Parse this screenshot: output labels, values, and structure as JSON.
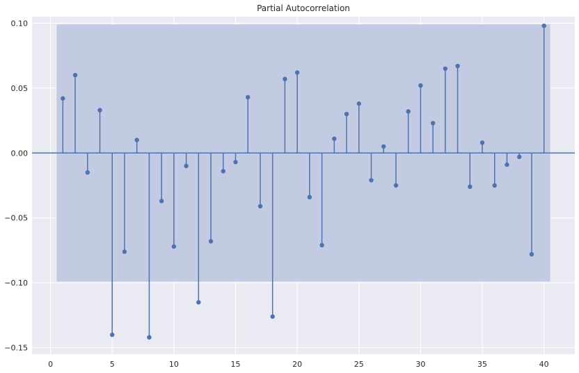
{
  "chart_data": {
    "type": "stem",
    "title": "Partial Autocorrelation",
    "xlabel": "",
    "ylabel": "",
    "xlim": [
      -1.5,
      42.5
    ],
    "ylim": [
      -0.155,
      0.105
    ],
    "xticks": [
      0,
      5,
      10,
      15,
      20,
      25,
      30,
      35,
      40
    ],
    "yticks": [
      0.1,
      0.05,
      0.0,
      -0.05,
      -0.1,
      -0.15
    ],
    "ytick_labels": [
      "0.10",
      "0.05",
      "0.00",
      "−0.05",
      "−0.10",
      "−0.15"
    ],
    "confidence_band": {
      "lower": -0.099,
      "upper": 0.099,
      "x_start": 0.5,
      "x_end": 40.5
    },
    "grid": true,
    "colors": {
      "stem": "#4c72b0",
      "band": "#c3cbe3",
      "background": "#eaeaf2",
      "grid": "#ffffff"
    },
    "lags": [
      1,
      2,
      3,
      4,
      5,
      6,
      7,
      8,
      9,
      10,
      11,
      12,
      13,
      14,
      15,
      16,
      17,
      18,
      19,
      20,
      21,
      22,
      23,
      24,
      25,
      26,
      27,
      28,
      29,
      30,
      31,
      32,
      33,
      34,
      35,
      36,
      37,
      38,
      39,
      40
    ],
    "values": [
      0.042,
      0.06,
      -0.015,
      0.033,
      -0.14,
      -0.076,
      0.01,
      -0.142,
      -0.037,
      -0.072,
      -0.01,
      -0.115,
      -0.068,
      -0.014,
      -0.007,
      0.043,
      -0.041,
      -0.126,
      0.057,
      0.062,
      -0.034,
      -0.071,
      0.011,
      0.03,
      0.038,
      -0.021,
      0.005,
      -0.025,
      0.032,
      0.052,
      0.023,
      0.065,
      0.067,
      -0.026,
      0.008,
      -0.025,
      -0.009,
      -0.003,
      -0.078,
      0.098
    ]
  }
}
